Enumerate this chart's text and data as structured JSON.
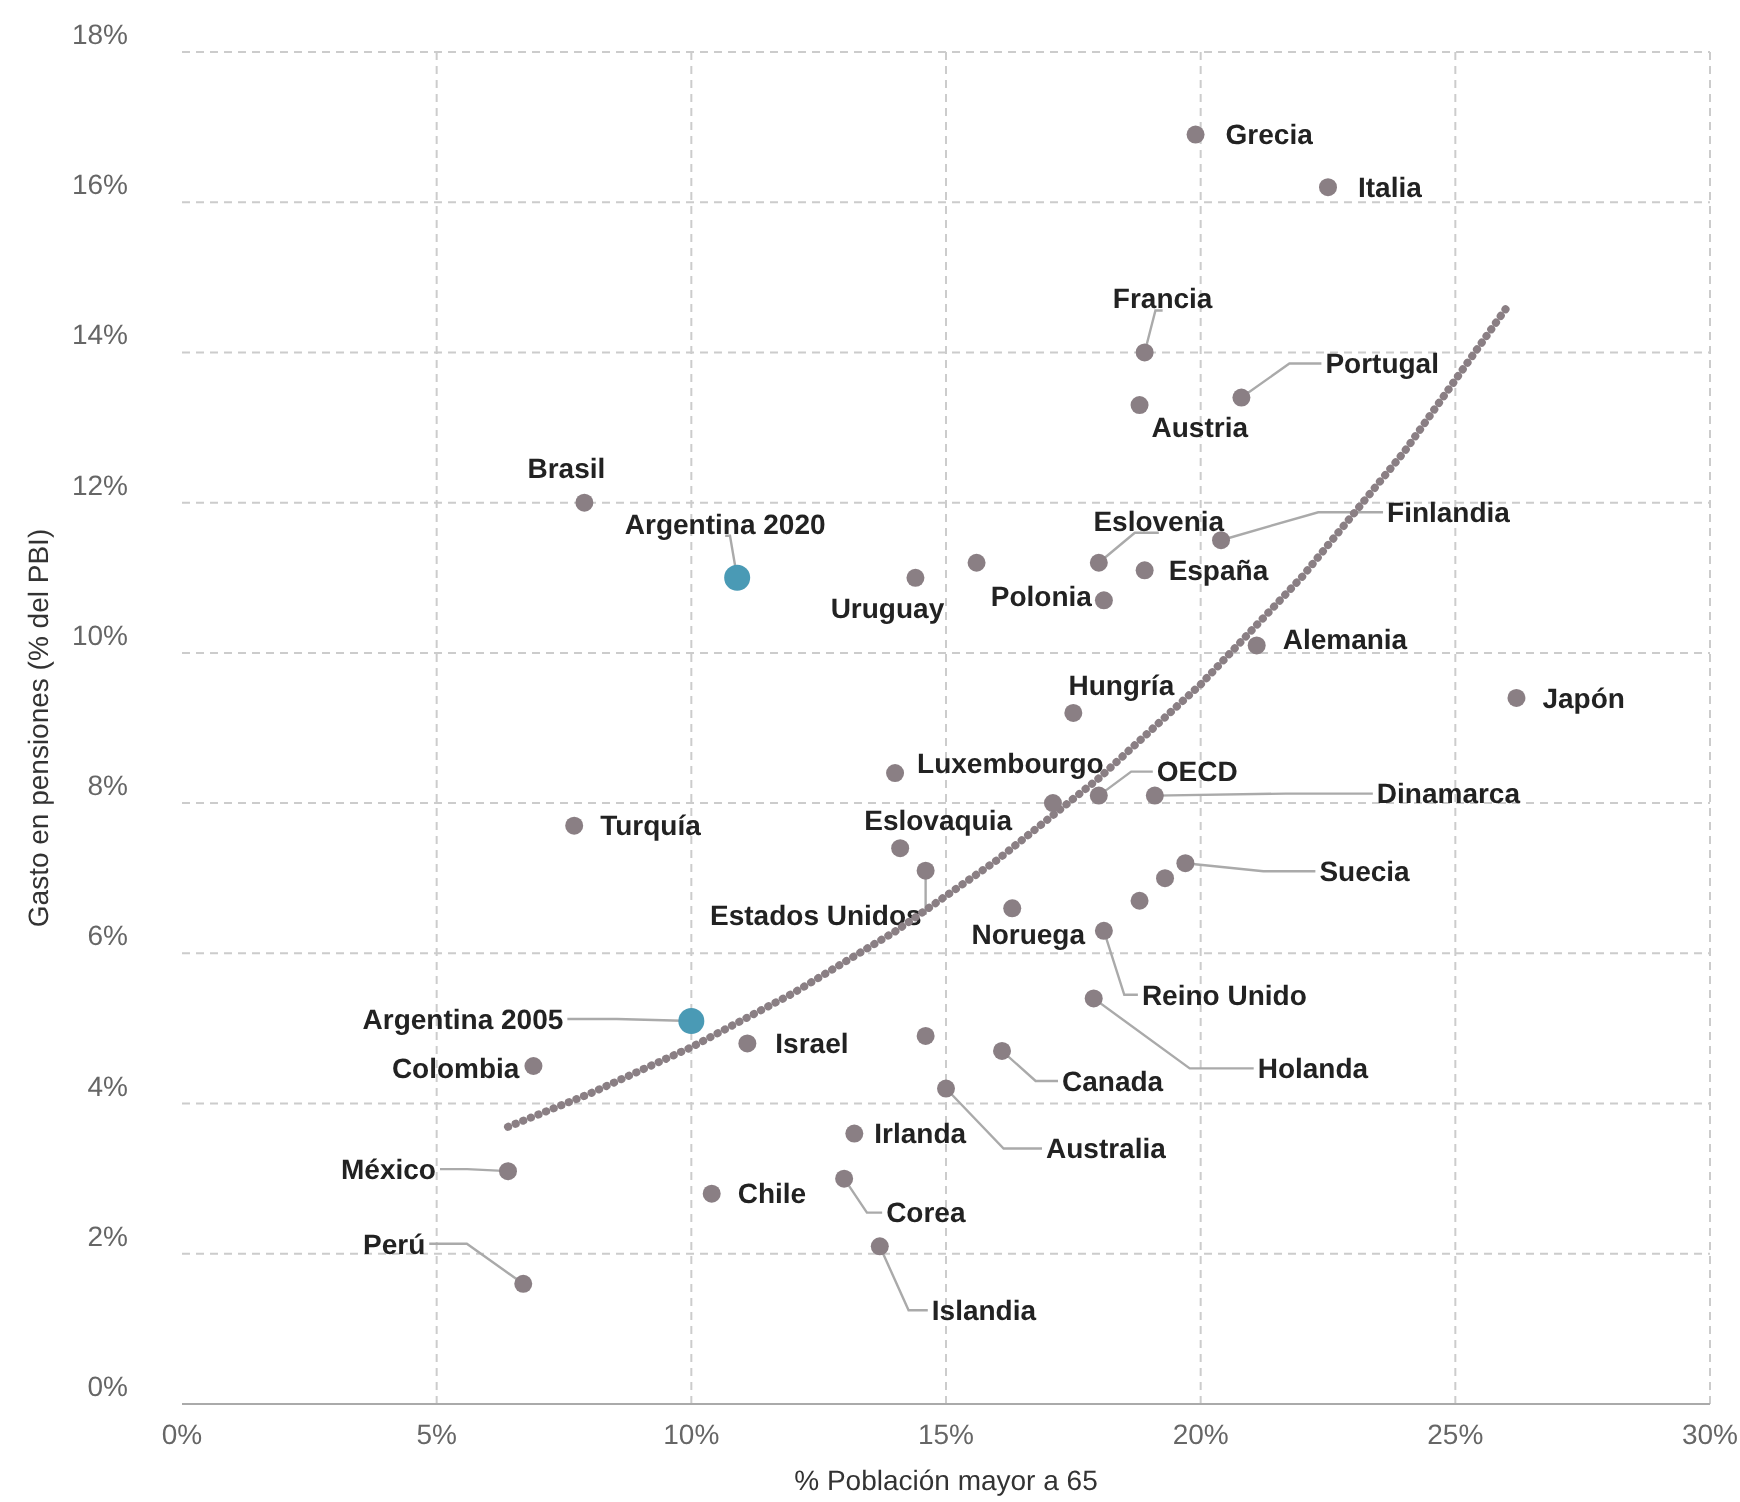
{
  "chart_data": {
    "type": "scatter",
    "xlabel": "% Población mayor a 65",
    "ylabel": "Gasto en pensiones (% del PBI)",
    "xlim": [
      0,
      30
    ],
    "ylim": [
      0,
      18
    ],
    "xticks": [
      {
        "value": 0,
        "label": "0%"
      },
      {
        "value": 5,
        "label": "5%"
      },
      {
        "value": 10,
        "label": "10%"
      },
      {
        "value": 15,
        "label": "15%"
      },
      {
        "value": 20,
        "label": "20%"
      },
      {
        "value": 25,
        "label": "25%"
      },
      {
        "value": 30,
        "label": "30%"
      }
    ],
    "yticks": [
      {
        "value": 0,
        "label": "0%"
      },
      {
        "value": 2,
        "label": "2%"
      },
      {
        "value": 4,
        "label": "4%"
      },
      {
        "value": 6,
        "label": "6%"
      },
      {
        "value": 8,
        "label": "8%"
      },
      {
        "value": 10,
        "label": "10%"
      },
      {
        "value": 12,
        "label": "12%"
      },
      {
        "value": 14,
        "label": "14%"
      },
      {
        "value": 16,
        "label": "16%"
      },
      {
        "value": 18,
        "label": "18%"
      }
    ],
    "grid": true,
    "marker": "circle",
    "series": [
      {
        "type": "line",
        "color": "#8a7f84",
        "line_style": "dotted",
        "marker": "none",
        "x": [
          6.4,
          8,
          10,
          12,
          14,
          16,
          18,
          20,
          22,
          24,
          26
        ],
        "values": [
          3.69,
          4.13,
          4.75,
          5.47,
          6.29,
          7.24,
          8.33,
          9.58,
          11.02,
          12.68,
          14.59
        ]
      },
      {
        "color": "#8a7f84",
        "x": [
          19.9,
          22.5,
          18.9,
          20.8,
          18.8,
          7.9,
          14.4,
          15.6,
          18.0,
          18.1,
          18.9,
          20.4,
          21.1,
          26.2,
          17.5,
          14.0,
          17.1,
          18.0,
          19.1,
          7.7,
          14.1,
          14.6,
          16.3,
          18.8,
          19.3,
          19.7,
          18.1,
          17.9,
          6.9,
          11.1,
          14.6,
          16.1,
          15.0,
          13.2,
          6.4,
          10.4,
          13.0,
          13.7,
          6.7
        ],
        "values": [
          16.9,
          16.2,
          14.0,
          13.4,
          13.3,
          12.0,
          11.0,
          11.2,
          11.2,
          10.7,
          11.1,
          11.5,
          10.1,
          9.4,
          9.2,
          8.4,
          8.0,
          8.1,
          8.1,
          7.7,
          7.4,
          7.1,
          6.6,
          6.7,
          7.0,
          7.2,
          6.3,
          5.4,
          4.5,
          4.8,
          4.9,
          4.7,
          4.2,
          3.6,
          3.1,
          2.8,
          3.0,
          2.1,
          1.6
        ]
      },
      {
        "color": "#4a9ab5",
        "x": [
          10.9,
          10.0
        ],
        "values": [
          11.0,
          5.1
        ]
      }
    ],
    "annotations": [
      {
        "text": "Grecia",
        "x": 19.9,
        "y": 16.9
      },
      {
        "text": "Italia",
        "x": 22.5,
        "y": 16.2
      },
      {
        "text": "Francia",
        "x": 18.9,
        "y": 14.0
      },
      {
        "text": "Portugal",
        "x": 20.8,
        "y": 13.4
      },
      {
        "text": "Austria",
        "x": 18.8,
        "y": 13.3
      },
      {
        "text": "Brasil",
        "x": 7.9,
        "y": 12.0
      },
      {
        "text": "Argentina 2020",
        "x": 10.9,
        "y": 11.0
      },
      {
        "text": "Uruguay",
        "x": 14.4,
        "y": 11.0
      },
      {
        "text": "Eslovenia",
        "x": 18.0,
        "y": 11.2
      },
      {
        "text": "Polonia",
        "x": 18.1,
        "y": 10.7
      },
      {
        "text": "España",
        "x": 18.9,
        "y": 11.1
      },
      {
        "text": "Finlandia",
        "x": 20.4,
        "y": 11.5
      },
      {
        "text": "Alemania",
        "x": 21.1,
        "y": 10.1
      },
      {
        "text": "Japón",
        "x": 26.2,
        "y": 9.4
      },
      {
        "text": "Hungría",
        "x": 17.5,
        "y": 9.2
      },
      {
        "text": "Luxembourgo",
        "x": 14.0,
        "y": 8.4
      },
      {
        "text": "OECD",
        "x": 18.0,
        "y": 8.1
      },
      {
        "text": "Dinamarca",
        "x": 19.1,
        "y": 8.1
      },
      {
        "text": "Turquía",
        "x": 7.7,
        "y": 7.7
      },
      {
        "text": "Eslovaquia",
        "x": 14.1,
        "y": 7.4
      },
      {
        "text": "Estados Unidos",
        "x": 14.6,
        "y": 7.1
      },
      {
        "text": "Noruega",
        "x": 16.3,
        "y": 6.6
      },
      {
        "text": "Suecia",
        "x": 19.7,
        "y": 7.2
      },
      {
        "text": "Reino Unido",
        "x": 18.1,
        "y": 6.3
      },
      {
        "text": "Holanda",
        "x": 17.9,
        "y": 5.4
      },
      {
        "text": "Argentina 2005",
        "x": 10.0,
        "y": 5.1
      },
      {
        "text": "Colombia",
        "x": 6.9,
        "y": 4.5
      },
      {
        "text": "Israel",
        "x": 11.1,
        "y": 4.8
      },
      {
        "text": "Canada",
        "x": 16.1,
        "y": 4.7
      },
      {
        "text": "Australia",
        "x": 15.0,
        "y": 4.2
      },
      {
        "text": "Irlanda",
        "x": 13.2,
        "y": 3.6
      },
      {
        "text": "México",
        "x": 6.4,
        "y": 3.1
      },
      {
        "text": "Chile",
        "x": 10.4,
        "y": 2.8
      },
      {
        "text": "Corea",
        "x": 13.0,
        "y": 3.0
      },
      {
        "text": "Islandia",
        "x": 13.7,
        "y": 2.1
      },
      {
        "text": "Perú",
        "x": 6.7,
        "y": 1.6
      }
    ]
  }
}
